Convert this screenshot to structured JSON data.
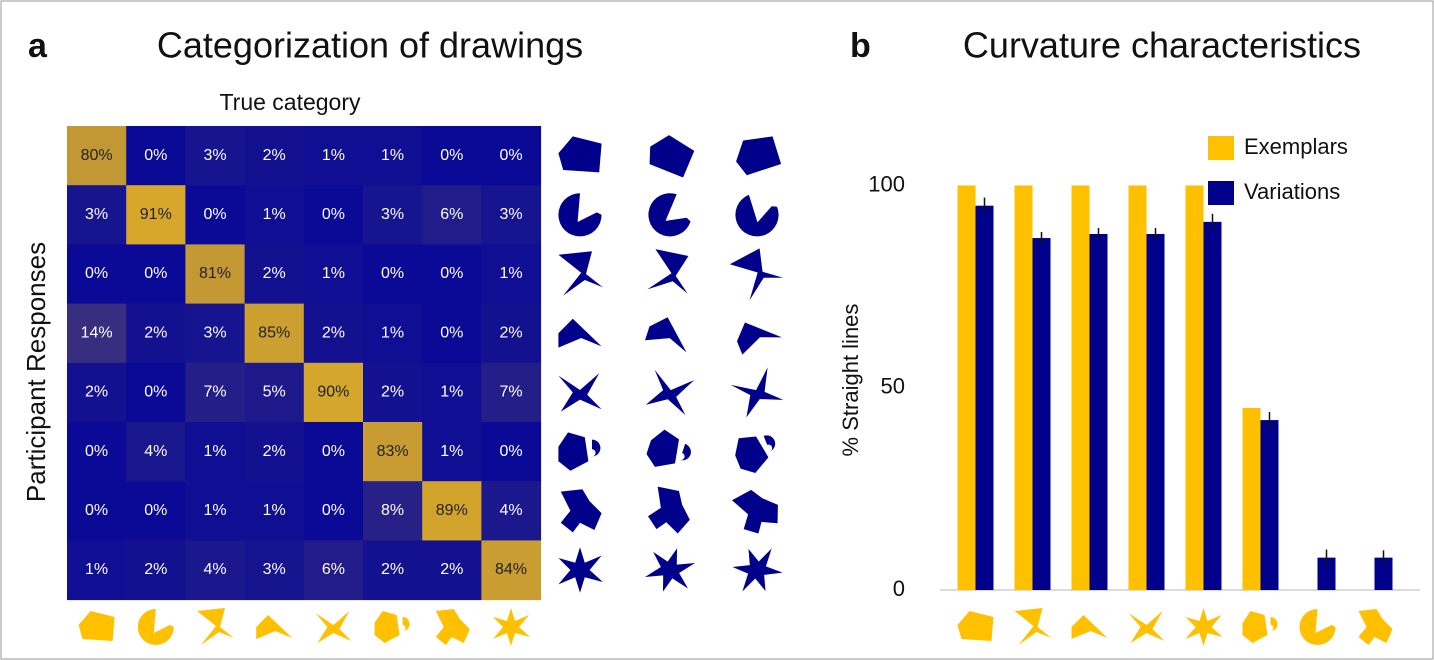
{
  "chart_data": [
    {
      "type": "heatmap",
      "panel_label": "a",
      "title": "Categorization of drawings",
      "x_label": "True category",
      "y_label": "Participant Responses",
      "colormap": [
        "#0a0a96",
        "#d6a72a"
      ],
      "values": [
        [
          80,
          0,
          3,
          2,
          1,
          1,
          0,
          0
        ],
        [
          3,
          91,
          0,
          1,
          0,
          3,
          6,
          3
        ],
        [
          0,
          0,
          81,
          2,
          1,
          0,
          0,
          1
        ],
        [
          14,
          2,
          3,
          85,
          2,
          1,
          0,
          2
        ],
        [
          2,
          0,
          7,
          5,
          90,
          2,
          1,
          7
        ],
        [
          0,
          4,
          1,
          2,
          0,
          83,
          1,
          0
        ],
        [
          0,
          0,
          1,
          1,
          0,
          8,
          89,
          4
        ],
        [
          1,
          2,
          4,
          3,
          6,
          2,
          2,
          84
        ]
      ],
      "value_labels": [
        [
          "80%",
          "0%",
          "3%",
          "2%",
          "1%",
          "1%",
          "0%",
          "0%"
        ],
        [
          "3%",
          "91%",
          "0%",
          "1%",
          "0%",
          "3%",
          "6%",
          "3%"
        ],
        [
          "0%",
          "0%",
          "81%",
          "2%",
          "1%",
          "0%",
          "0%",
          "1%"
        ],
        [
          "14%",
          "2%",
          "3%",
          "85%",
          "2%",
          "1%",
          "0%",
          "2%"
        ],
        [
          "2%",
          "0%",
          "7%",
          "5%",
          "90%",
          "2%",
          "1%",
          "7%"
        ],
        [
          "0%",
          "4%",
          "1%",
          "2%",
          "0%",
          "83%",
          "1%",
          "0%"
        ],
        [
          "0%",
          "0%",
          "1%",
          "1%",
          "0%",
          "8%",
          "89%",
          "4%"
        ],
        [
          "1%",
          "2%",
          "4%",
          "3%",
          "6%",
          "2%",
          "2%",
          "84%"
        ]
      ]
    },
    {
      "type": "bar",
      "panel_label": "b",
      "title": "Curvature characteristics",
      "y_label": "% Straight lines",
      "categories": [
        null,
        null,
        null,
        null,
        null,
        null,
        null,
        null
      ],
      "series": [
        {
          "name": "Exemplars",
          "color": "#ffc000",
          "values": [
            100,
            100,
            100,
            100,
            100,
            45,
            0,
            0
          ]
        },
        {
          "name": "Variations",
          "color": "#00008b",
          "values": [
            95,
            87,
            88,
            88,
            91,
            42,
            8,
            8
          ],
          "errors": [
            2,
            1.5,
            1.5,
            1.5,
            2,
            2,
            2,
            1.8
          ]
        }
      ],
      "ylim": [
        0,
        110
      ],
      "yticks": [
        0,
        50,
        100
      ],
      "grid": false,
      "legend": "upper right"
    }
  ]
}
